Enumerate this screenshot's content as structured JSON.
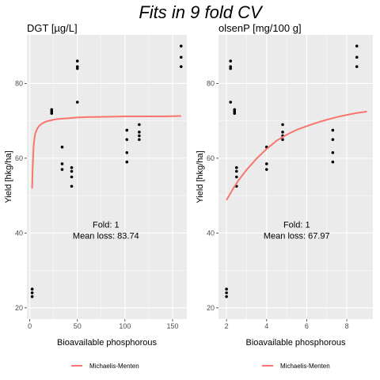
{
  "title": "Fits in 9 fold CV",
  "colors": {
    "panel_bg": "#ebebeb",
    "grid": "#ffffff",
    "point": "#000000",
    "fit_line": "#f8766d"
  },
  "legend": {
    "label": "Michaelis-Menten",
    "placement": "bottom"
  },
  "chart_data": [
    {
      "type": "scatter",
      "title": "DGT [µg/L]",
      "xlabel": "Bioavailable phosphorous",
      "ylabel": "Yield [hkg/ha]",
      "xlim": [
        -3,
        165
      ],
      "ylim": [
        17,
        93
      ],
      "xticks": [
        0,
        50,
        100,
        150
      ],
      "yticks": [
        20,
        40,
        60,
        80
      ],
      "points": [
        {
          "x": 2.5,
          "y": 25
        },
        {
          "x": 2.5,
          "y": 24
        },
        {
          "x": 2.5,
          "y": 23
        },
        {
          "x": 23,
          "y": 73
        },
        {
          "x": 23,
          "y": 72.5
        },
        {
          "x": 23,
          "y": 72
        },
        {
          "x": 34,
          "y": 63
        },
        {
          "x": 34,
          "y": 58.5
        },
        {
          "x": 34,
          "y": 57
        },
        {
          "x": 44,
          "y": 57.5
        },
        {
          "x": 44,
          "y": 56.5
        },
        {
          "x": 44,
          "y": 55
        },
        {
          "x": 44,
          "y": 52.5
        },
        {
          "x": 50,
          "y": 86
        },
        {
          "x": 50,
          "y": 84.5
        },
        {
          "x": 50,
          "y": 84
        },
        {
          "x": 50,
          "y": 75
        },
        {
          "x": 102,
          "y": 67.5
        },
        {
          "x": 102,
          "y": 65
        },
        {
          "x": 102,
          "y": 61.5
        },
        {
          "x": 102,
          "y": 59
        },
        {
          "x": 115,
          "y": 69
        },
        {
          "x": 115,
          "y": 67
        },
        {
          "x": 115,
          "y": 66
        },
        {
          "x": 115,
          "y": 65
        },
        {
          "x": 159,
          "y": 90
        },
        {
          "x": 159,
          "y": 87
        },
        {
          "x": 159,
          "y": 84.5
        }
      ],
      "fit": {
        "name": "Michaelis-Menten",
        "x": [
          2.5,
          3,
          4,
          5,
          6,
          8,
          10,
          13,
          16,
          20,
          25,
          30,
          40,
          50,
          60,
          80,
          100,
          120,
          140,
          159
        ],
        "y": [
          51.9,
          57.3,
          63.0,
          65.6,
          66.8,
          68.0,
          68.7,
          69.3,
          69.7,
          70.0,
          70.3,
          70.5,
          70.7,
          70.9,
          71.0,
          71.1,
          71.2,
          71.2,
          71.2,
          71.3
        ]
      },
      "annotation": {
        "line1": "Fold: 1",
        "line2": "Mean loss: 83.74",
        "x": 80,
        "y1": 41.5,
        "y2": 38.5
      }
    },
    {
      "type": "scatter",
      "title": "olsenP [mg/100 g]",
      "xlabel": "Bioavailable phosphorous",
      "ylabel": "Yield [hkg/ha]",
      "xlim": [
        1.6,
        9.3
      ],
      "ylim": [
        17,
        93
      ],
      "xticks": [
        2,
        4,
        6,
        8
      ],
      "yticks": [
        20,
        40,
        60,
        80
      ],
      "points": [
        {
          "x": 2.0,
          "y": 25
        },
        {
          "x": 2.0,
          "y": 24
        },
        {
          "x": 2.0,
          "y": 23
        },
        {
          "x": 2.2,
          "y": 86
        },
        {
          "x": 2.2,
          "y": 84.5
        },
        {
          "x": 2.2,
          "y": 84
        },
        {
          "x": 2.2,
          "y": 75
        },
        {
          "x": 2.4,
          "y": 73
        },
        {
          "x": 2.4,
          "y": 72.5
        },
        {
          "x": 2.4,
          "y": 72
        },
        {
          "x": 2.5,
          "y": 57.5
        },
        {
          "x": 2.5,
          "y": 56.5
        },
        {
          "x": 2.5,
          "y": 55
        },
        {
          "x": 2.5,
          "y": 52.5
        },
        {
          "x": 4.0,
          "y": 63
        },
        {
          "x": 4.0,
          "y": 58.5
        },
        {
          "x": 4.0,
          "y": 57
        },
        {
          "x": 4.8,
          "y": 69
        },
        {
          "x": 4.8,
          "y": 67
        },
        {
          "x": 4.8,
          "y": 66
        },
        {
          "x": 4.8,
          "y": 65
        },
        {
          "x": 7.3,
          "y": 67.5
        },
        {
          "x": 7.3,
          "y": 65
        },
        {
          "x": 7.3,
          "y": 61.5
        },
        {
          "x": 7.3,
          "y": 59
        },
        {
          "x": 8.5,
          "y": 90
        },
        {
          "x": 8.5,
          "y": 87
        },
        {
          "x": 8.5,
          "y": 84.5
        }
      ],
      "fit": {
        "name": "Michaelis-Menten",
        "x": [
          2.0,
          2.3,
          2.6,
          3.0,
          3.5,
          4.0,
          4.5,
          5.0,
          5.5,
          6.0,
          6.5,
          7.0,
          7.5,
          8.0,
          8.5,
          9.0
        ],
        "y": [
          48.8,
          51.6,
          54.1,
          56.9,
          59.9,
          62.5,
          64.7,
          66.3,
          67.6,
          68.6,
          69.5,
          70.3,
          71.0,
          71.6,
          72.1,
          72.5
        ]
      },
      "annotation": {
        "line1": "Fold: 1",
        "line2": "Mean loss: 67.97",
        "x": 5.5,
        "y1": 41.5,
        "y2": 38.5
      }
    }
  ]
}
